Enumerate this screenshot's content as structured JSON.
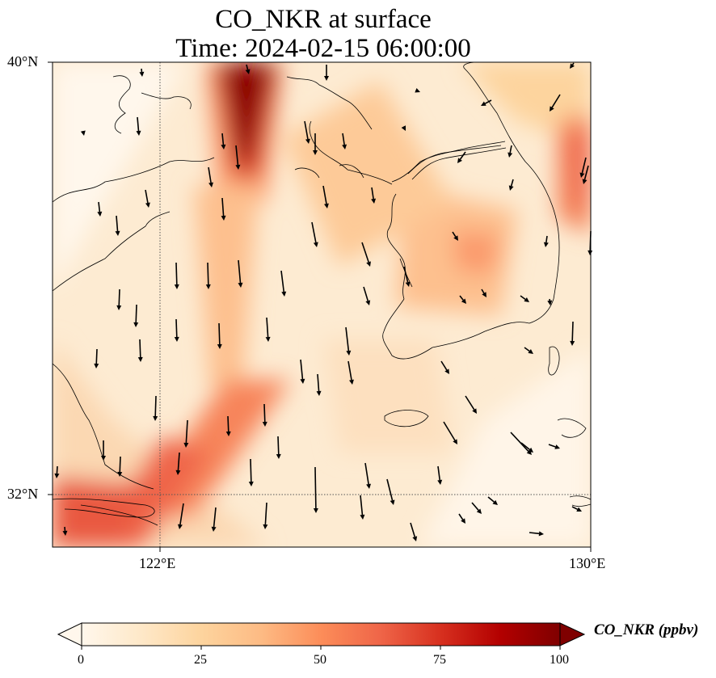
{
  "title": {
    "line1": "CO_NKR at surface",
    "line2": "Time: 2024-02-15 06:00:00"
  },
  "axes": {
    "lat_ticks": [
      "40°N",
      "32°N"
    ],
    "lon_ticks": [
      "122°E",
      "130°E"
    ],
    "lon_range": [
      120,
      130
    ],
    "lat_range": [
      31,
      40
    ],
    "gridlines": "dotted at 122°E and 32°N"
  },
  "colorbar": {
    "label": "CO_NKR (ppbv)",
    "ticks": [
      "0",
      "25",
      "50",
      "75",
      "100"
    ],
    "range": [
      0,
      100
    ],
    "extend": "both",
    "colormap": "OrRd",
    "colors": [
      "#fff7ec",
      "#fee8c8",
      "#fdd49e",
      "#fdbb84",
      "#fc8d59",
      "#ef6548",
      "#d7301f",
      "#b30000",
      "#7f0000"
    ]
  },
  "chart_data": {
    "type": "heatmap",
    "description_variable": "CO_NKR",
    "units": "ppbv",
    "plumes": [
      {
        "lon": 123.5,
        "lat": 39.3,
        "value": 100
      },
      {
        "lon": 123.6,
        "lat": 38.5,
        "value": 80
      },
      {
        "lon": 123.3,
        "lat": 37.5,
        "value": 55
      },
      {
        "lon": 123.0,
        "lat": 35.5,
        "value": 35
      },
      {
        "lon": 122.8,
        "lat": 33.5,
        "value": 45
      },
      {
        "lon": 121.8,
        "lat": 32.6,
        "value": 60
      },
      {
        "lon": 120.5,
        "lat": 31.6,
        "value": 65
      },
      {
        "lon": 127.8,
        "lat": 35.6,
        "value": 38
      },
      {
        "lon": 129.8,
        "lat": 37.3,
        "value": 50
      },
      {
        "lon": 127.0,
        "lat": 38.5,
        "value": 25
      }
    ]
  }
}
